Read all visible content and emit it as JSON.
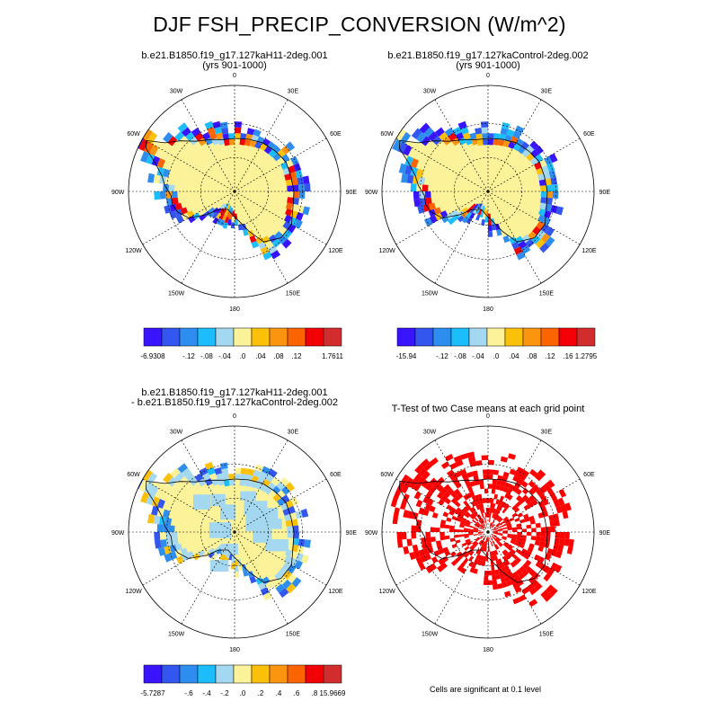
{
  "title": "DJF FSH_PRECIP_CONVERSION (W/m^2)",
  "note": "Cells are significant at 0.1 level",
  "lon_labels": [
    "0",
    "30E",
    "60E",
    "90E",
    "120E",
    "150E",
    "180",
    "150W",
    "120W",
    "90W",
    "60W",
    "30W"
  ],
  "colors": {
    "background": "#ffffff",
    "land_fill": "#fbf29a",
    "significance": "#ff0000",
    "coast": "#000000",
    "grid": "#000000"
  },
  "panels": [
    {
      "id": "p1",
      "title_line1": "b.e21.B1850.f19_g17.127kaH11-2deg.001",
      "title_line2": "(yrs 901-1000)",
      "label_bar": {
        "colors": [
          "#3814ff",
          "#3256ee",
          "#2d8ef0",
          "#1bbdfa",
          "#a4d8f0",
          "#fbf29a",
          "#fbc00a",
          "#fb9510",
          "#fb6400",
          "#f20006",
          "#d22d2e"
        ],
        "labels": [
          "-6.9308",
          "",
          "-.12",
          "-.08",
          "-.04",
          ".0",
          ".04",
          ".08",
          ".12",
          "",
          "1.7611"
        ]
      }
    },
    {
      "id": "p2",
      "title_line1": "b.e21.B1850.f19_g17.127kaControl-2deg.002",
      "title_line2": "(yrs 901-1000)",
      "label_bar": {
        "colors": [
          "#3814ff",
          "#3256ee",
          "#2d8ef0",
          "#1bbdfa",
          "#a4d8f0",
          "#fbf29a",
          "#fbc00a",
          "#fb9510",
          "#fb6400",
          "#f20006",
          "#d22d2e"
        ],
        "labels": [
          "-15.94",
          "",
          "-.12",
          "-.08",
          "-.04",
          ".0",
          ".04",
          ".08",
          ".12",
          ".16",
          "1.2795"
        ]
      }
    },
    {
      "id": "p3",
      "title_line1": "b.e21.B1850.f19_g17.127kaH11-2deg.001",
      "title_line2": "- b.e21.B1850.f19_g17.127kaControl-2deg.002",
      "label_bar": {
        "colors": [
          "#3814ff",
          "#3256ee",
          "#2d8ef0",
          "#1bbdfa",
          "#a4d8f0",
          "#fbf29a",
          "#fbc00a",
          "#fb9510",
          "#fb6400",
          "#f20006",
          "#d22d2e"
        ],
        "labels": [
          "-5.7287",
          "",
          "-.6",
          "-.4",
          "-.2",
          ".0",
          ".2",
          ".4",
          ".6",
          ".8",
          "15.9669"
        ]
      }
    },
    {
      "id": "p4",
      "title_line1": "T-Test of two Case means at each grid point",
      "title_line2": ""
    }
  ]
}
